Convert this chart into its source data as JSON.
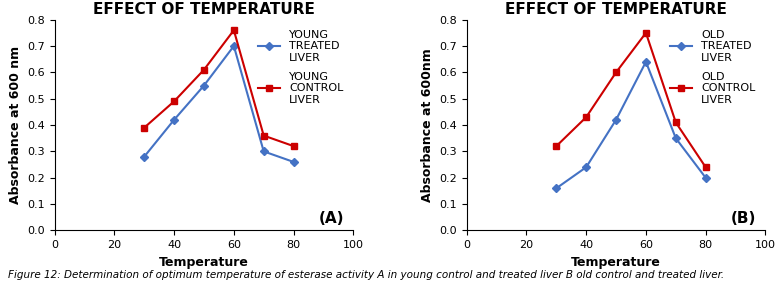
{
  "title": "EFFECT OF TEMPERATURE",
  "chartA": {
    "treated_x": [
      30,
      40,
      50,
      60,
      70,
      80
    ],
    "treated_y": [
      0.28,
      0.42,
      0.55,
      0.7,
      0.3,
      0.26
    ],
    "control_x": [
      30,
      40,
      50,
      60,
      70,
      80
    ],
    "control_y": [
      0.39,
      0.49,
      0.61,
      0.76,
      0.36,
      0.32
    ],
    "treated_label": "YOUNG\nTREATED\nLIVER",
    "control_label": "YOUNG\nCONTROL\nLIVER",
    "ylabel": "Absorbance at 600 nm",
    "xlabel": "Temperature",
    "panel_label": "(A)",
    "ylim": [
      0,
      0.8
    ],
    "yticks": [
      0,
      0.1,
      0.2,
      0.3,
      0.4,
      0.5,
      0.6,
      0.7,
      0.8
    ],
    "xlim": [
      0,
      100
    ],
    "xticks": [
      0,
      20,
      40,
      60,
      80,
      100
    ]
  },
  "chartB": {
    "treated_x": [
      30,
      40,
      50,
      60,
      70,
      80
    ],
    "treated_y": [
      0.16,
      0.24,
      0.42,
      0.64,
      0.35,
      0.2
    ],
    "control_x": [
      30,
      40,
      50,
      60,
      70,
      80
    ],
    "control_y": [
      0.32,
      0.43,
      0.6,
      0.75,
      0.41,
      0.24
    ],
    "treated_label": "OLD\nTREATED\nLIVER",
    "control_label": "OLD\nCONTROL\nLIVER",
    "ylabel": "Absorbance at 600nm",
    "xlabel": "Temperature",
    "panel_label": "(B)",
    "ylim": [
      0,
      0.8
    ],
    "yticks": [
      0,
      0.1,
      0.2,
      0.3,
      0.4,
      0.5,
      0.6,
      0.7,
      0.8
    ],
    "xlim": [
      0,
      100
    ],
    "xticks": [
      0,
      20,
      40,
      60,
      80,
      100
    ]
  },
  "treated_color": "#4472c4",
  "control_color": "#cc0000",
  "caption": "Figure 12: Determination of optimum temperature of esterase activity A in young control and treated liver B old control and treated liver.",
  "bg_color": "#ffffff",
  "title_fontsize": 11,
  "axis_label_fontsize": 9,
  "tick_fontsize": 8,
  "legend_fontsize": 8,
  "caption_fontsize": 7.5
}
